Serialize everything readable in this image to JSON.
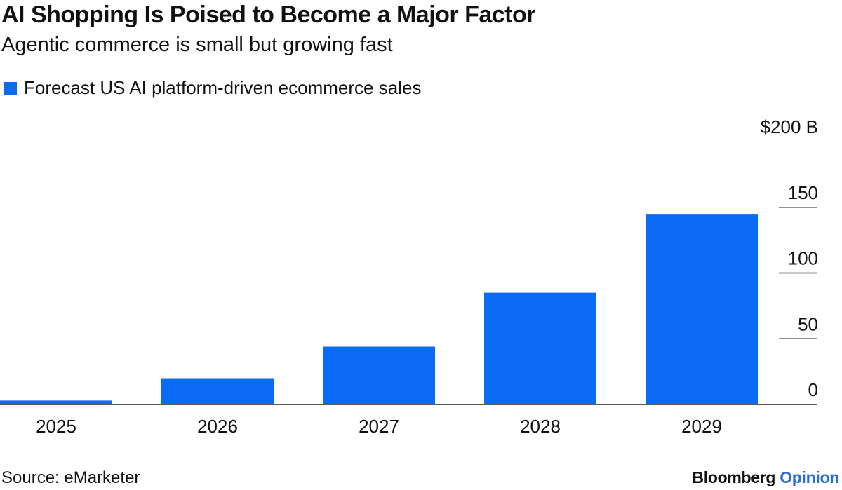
{
  "header": {
    "title": "AI Shopping Is Poised to Become a Major Factor",
    "subtitle": "Agentic commerce is small but growing fast"
  },
  "legend": {
    "label": "Forecast US AI platform-driven ecommerce sales",
    "color": "#0a6cf5"
  },
  "chart_data": {
    "type": "bar",
    "title": "AI Shopping Is Poised to Become a Major Factor",
    "subtitle": "Agentic commerce is small but growing fast",
    "categories": [
      "2025",
      "2026",
      "2027",
      "2028",
      "2029"
    ],
    "series": [
      {
        "name": "Forecast US AI platform-driven ecommerce sales",
        "values": [
          3,
          20,
          44,
          85,
          145
        ]
      }
    ],
    "ylim": [
      0,
      200
    ],
    "yticks": [
      0,
      50,
      100,
      150,
      200
    ],
    "ytick_labels": [
      "0",
      "50",
      "100",
      "150",
      "$200 B"
    ],
    "axis_side": "right",
    "color": "#0a6cf5"
  },
  "footer": {
    "source": "Source: eMarketer",
    "brand_main": "Bloomberg",
    "brand_accent": "Opinion"
  }
}
